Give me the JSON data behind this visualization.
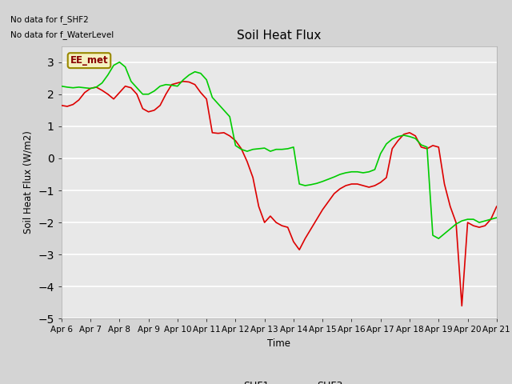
{
  "title": "Soil Heat Flux",
  "ylabel": "Soil Heat Flux (W/m2)",
  "xlabel": "Time",
  "ylim": [
    -5.0,
    3.5
  ],
  "yticks": [
    -5.0,
    -4.0,
    -3.0,
    -2.0,
    -1.0,
    0.0,
    1.0,
    2.0,
    3.0
  ],
  "xtick_labels": [
    "Apr 6",
    "Apr 7",
    "Apr 8",
    "Apr 9",
    "Apr 10",
    "Apr 11",
    "Apr 12",
    "Apr 13",
    "Apr 14",
    "Apr 15",
    "Apr 16",
    "Apr 17",
    "Apr 18",
    "Apr 19",
    "Apr 20",
    "Apr 21"
  ],
  "note_lines": [
    "No data for f_SHF2",
    "No data for f_WaterLevel"
  ],
  "tag_text": "EE_met",
  "tag_bg": "#f5f0c0",
  "tag_border": "#998800",
  "tag_text_color": "#880000",
  "color_shf1": "#dd0000",
  "color_shf3": "#00cc00",
  "fig_bg": "#d4d4d4",
  "plot_bg": "#e8e8e8",
  "shf1_x": [
    0.0,
    0.2,
    0.4,
    0.6,
    0.8,
    1.0,
    1.2,
    1.4,
    1.6,
    1.8,
    2.0,
    2.2,
    2.4,
    2.6,
    2.8,
    3.0,
    3.2,
    3.4,
    3.6,
    3.8,
    4.0,
    4.2,
    4.4,
    4.6,
    4.8,
    5.0,
    5.2,
    5.4,
    5.6,
    5.8,
    6.0,
    6.2,
    6.4,
    6.6,
    6.8,
    7.0,
    7.2,
    7.4,
    7.6,
    7.8,
    8.0,
    8.2,
    8.4,
    8.6,
    8.8,
    9.0,
    9.2,
    9.4,
    9.6,
    9.8,
    10.0,
    10.2,
    10.4,
    10.6,
    10.8,
    11.0,
    11.2,
    11.4,
    11.6,
    11.8,
    12.0,
    12.2,
    12.4,
    12.6,
    12.8,
    13.0,
    13.2,
    13.4,
    13.6,
    13.8,
    14.0,
    14.2,
    14.4,
    14.6,
    14.8,
    15.0
  ],
  "shf1_y": [
    1.65,
    1.62,
    1.68,
    1.82,
    2.05,
    2.18,
    2.22,
    2.12,
    2.0,
    1.85,
    2.05,
    2.25,
    2.2,
    2.0,
    1.55,
    1.45,
    1.5,
    1.65,
    2.0,
    2.3,
    2.35,
    2.4,
    2.38,
    2.3,
    2.05,
    1.85,
    0.8,
    0.78,
    0.8,
    0.7,
    0.55,
    0.3,
    -0.1,
    -0.6,
    -1.5,
    -2.0,
    -1.8,
    -2.0,
    -2.1,
    -2.15,
    -2.6,
    -2.85,
    -2.5,
    -2.2,
    -1.9,
    -1.6,
    -1.35,
    -1.1,
    -0.95,
    -0.85,
    -0.8,
    -0.8,
    -0.85,
    -0.9,
    -0.85,
    -0.75,
    -0.6,
    0.3,
    0.55,
    0.75,
    0.8,
    0.7,
    0.35,
    0.3,
    0.4,
    0.35,
    -0.8,
    -1.5,
    -2.0,
    -4.6,
    -2.0,
    -2.1,
    -2.15,
    -2.1,
    -1.9,
    -1.5
  ],
  "shf3_x": [
    0.0,
    0.2,
    0.4,
    0.6,
    0.8,
    1.0,
    1.2,
    1.4,
    1.6,
    1.8,
    2.0,
    2.2,
    2.4,
    2.6,
    2.8,
    3.0,
    3.2,
    3.4,
    3.6,
    3.8,
    4.0,
    4.2,
    4.4,
    4.6,
    4.8,
    5.0,
    5.2,
    5.4,
    5.6,
    5.8,
    6.0,
    6.2,
    6.4,
    6.6,
    6.8,
    7.0,
    7.2,
    7.4,
    7.6,
    7.8,
    8.0,
    8.2,
    8.4,
    8.6,
    8.8,
    9.0,
    9.2,
    9.4,
    9.6,
    9.8,
    10.0,
    10.2,
    10.4,
    10.6,
    10.8,
    11.0,
    11.2,
    11.4,
    11.6,
    11.8,
    12.0,
    12.2,
    12.4,
    12.6,
    12.8,
    13.0,
    13.2,
    13.4,
    13.6,
    13.8,
    14.0,
    14.2,
    14.4,
    14.6,
    14.8,
    15.0
  ],
  "shf3_y": [
    2.25,
    2.22,
    2.2,
    2.22,
    2.2,
    2.18,
    2.22,
    2.35,
    2.6,
    2.9,
    3.0,
    2.85,
    2.4,
    2.2,
    2.0,
    2.0,
    2.1,
    2.25,
    2.3,
    2.28,
    2.25,
    2.45,
    2.6,
    2.7,
    2.65,
    2.45,
    1.9,
    1.7,
    1.5,
    1.3,
    0.4,
    0.28,
    0.22,
    0.28,
    0.3,
    0.32,
    0.22,
    0.28,
    0.28,
    0.3,
    0.35,
    -0.8,
    -0.85,
    -0.82,
    -0.78,
    -0.72,
    -0.65,
    -0.58,
    -0.5,
    -0.45,
    -0.42,
    -0.42,
    -0.45,
    -0.42,
    -0.35,
    0.15,
    0.45,
    0.6,
    0.68,
    0.72,
    0.68,
    0.62,
    0.42,
    0.35,
    -2.4,
    -2.5,
    -2.35,
    -2.2,
    -2.05,
    -1.95,
    -1.9,
    -1.9,
    -2.0,
    -1.95,
    -1.9,
    -1.85
  ]
}
